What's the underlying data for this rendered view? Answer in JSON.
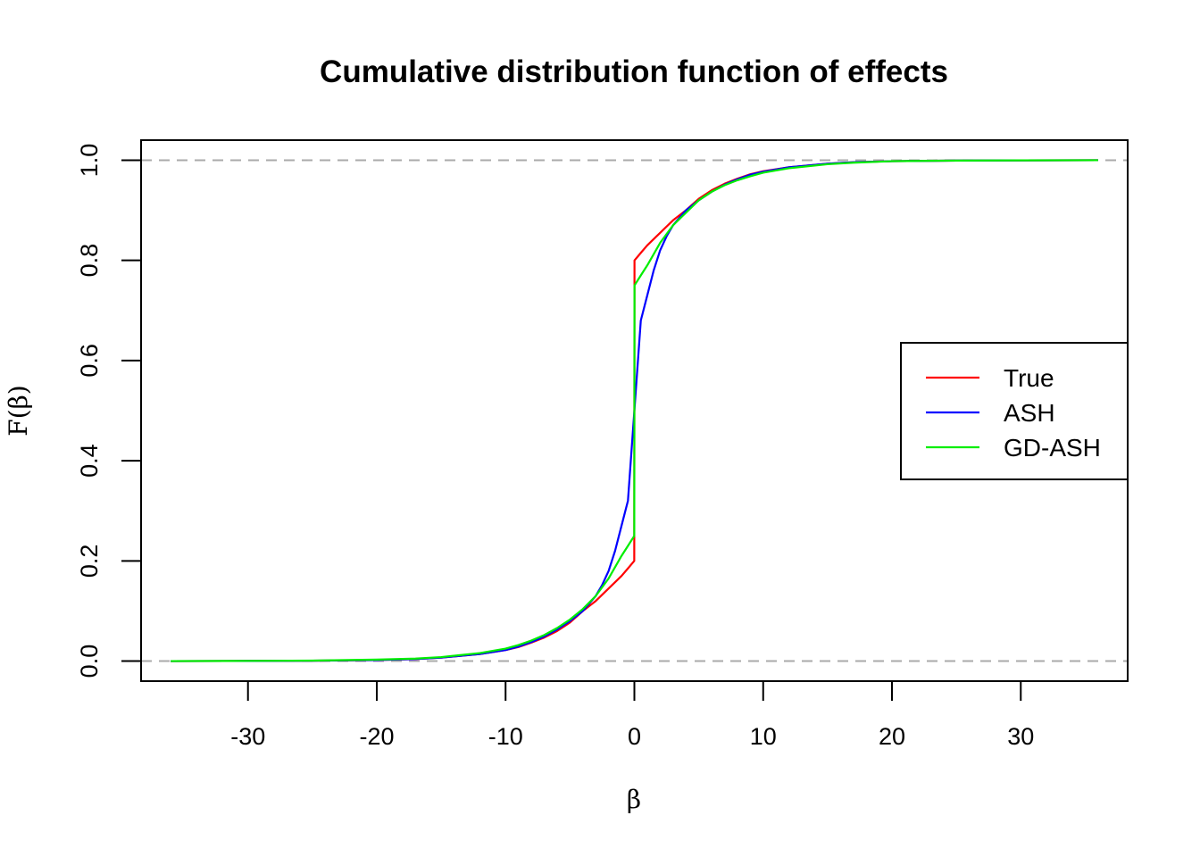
{
  "chart_data": {
    "type": "line",
    "title": "Cumulative distribution function of effects",
    "xlabel": "β",
    "ylabel": "F(β)",
    "xlim": [
      -38.3,
      38.3
    ],
    "ylim": [
      -0.04,
      1.04
    ],
    "xticks": [
      -30,
      -20,
      -10,
      0,
      10,
      20,
      30
    ],
    "xtick_labels": [
      "-30",
      "-20",
      "-10",
      "0",
      "10",
      "20",
      "30"
    ],
    "yticks": [
      0,
      0.2,
      0.4,
      0.6,
      0.8,
      1
    ],
    "ytick_labels": [
      "0.0",
      "0.2",
      "0.4",
      "0.6",
      "0.8",
      "1.0"
    ],
    "reference_lines": [
      0,
      1
    ],
    "reference_line_color": "#aaaaaa",
    "grid": false,
    "legend_position": "right",
    "series": [
      {
        "name": "True",
        "color": "#ff0000",
        "x": [
          -36,
          -30,
          -25,
          -20,
          -17,
          -15,
          -12,
          -10,
          -9,
          -8,
          -7,
          -6,
          -5,
          -4,
          -3,
          -2,
          -1,
          -0.5,
          -0.01,
          0.01,
          0.5,
          1,
          2,
          3,
          4,
          5,
          6,
          7,
          8,
          9,
          10,
          12,
          15,
          17,
          20,
          25,
          30,
          36
        ],
        "y": [
          0,
          0.0003,
          0.0008,
          0.002,
          0.004,
          0.007,
          0.014,
          0.022,
          0.028,
          0.037,
          0.047,
          0.06,
          0.077,
          0.1,
          0.12,
          0.145,
          0.17,
          0.185,
          0.2,
          0.8,
          0.815,
          0.83,
          0.855,
          0.88,
          0.9,
          0.923,
          0.94,
          0.953,
          0.963,
          0.972,
          0.978,
          0.986,
          0.993,
          0.996,
          0.998,
          0.9992,
          0.9997,
          1
        ]
      },
      {
        "name": "ASH",
        "color": "#0000ff",
        "x": [
          -36,
          -30,
          -25,
          -20,
          -17,
          -15,
          -12,
          -10,
          -9,
          -8,
          -7,
          -6,
          -5,
          -4,
          -3,
          -2.5,
          -2,
          -1.5,
          -1,
          -0.5,
          0,
          0.5,
          1,
          1.5,
          2,
          2.5,
          3,
          4,
          5,
          6,
          7,
          8,
          9,
          10,
          12,
          15,
          17,
          20,
          25,
          30,
          36
        ],
        "y": [
          0,
          0.0003,
          0.0008,
          0.002,
          0.004,
          0.007,
          0.014,
          0.022,
          0.029,
          0.038,
          0.049,
          0.063,
          0.08,
          0.1,
          0.13,
          0.152,
          0.18,
          0.22,
          0.27,
          0.32,
          0.5,
          0.68,
          0.73,
          0.78,
          0.82,
          0.848,
          0.87,
          0.9,
          0.92,
          0.937,
          0.951,
          0.962,
          0.971,
          0.977,
          0.986,
          0.993,
          0.996,
          0.998,
          0.9992,
          0.9997,
          1
        ]
      },
      {
        "name": "GD-ASH",
        "color": "#00ee00",
        "x": [
          -36,
          -30,
          -25,
          -20,
          -17,
          -15,
          -12,
          -10,
          -9,
          -8,
          -7,
          -6,
          -5,
          -4,
          -3,
          -2,
          -1,
          -0.5,
          -0.01,
          0.01,
          0.5,
          1,
          2,
          3,
          4,
          5,
          6,
          7,
          8,
          9,
          10,
          12,
          15,
          17,
          20,
          25,
          30,
          36
        ],
        "y": [
          0,
          0.0004,
          0.001,
          0.003,
          0.005,
          0.008,
          0.016,
          0.025,
          0.032,
          0.041,
          0.052,
          0.066,
          0.083,
          0.104,
          0.13,
          0.165,
          0.21,
          0.23,
          0.25,
          0.75,
          0.77,
          0.79,
          0.835,
          0.87,
          0.895,
          0.92,
          0.937,
          0.95,
          0.96,
          0.968,
          0.975,
          0.984,
          0.992,
          0.995,
          0.998,
          0.9992,
          0.9997,
          1
        ]
      }
    ]
  }
}
